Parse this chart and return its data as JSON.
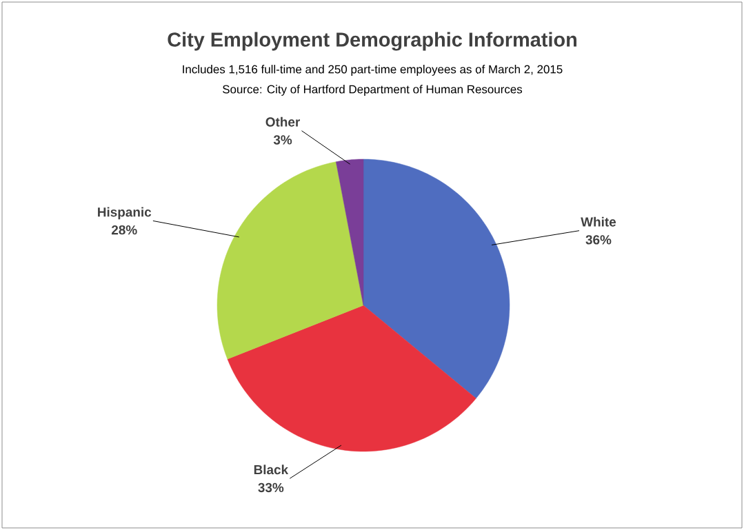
{
  "chart_data": {
    "type": "pie",
    "title": "City Employment Demographic Information",
    "subtitle": "Includes 1,516 full-time and 250 part-time employees as of March 2, 2015",
    "annotations": [
      "Source:  City of Hartford Department of Human Resources"
    ],
    "categories": [
      "White",
      "Black",
      "Hispanic",
      "Other"
    ],
    "values": [
      36,
      33,
      28,
      3
    ],
    "value_labels": [
      "36%",
      "33%",
      "28%",
      "3%"
    ],
    "colors": [
      "#4f6dc0",
      "#e8333f",
      "#b4d84c",
      "#7a3e98"
    ]
  }
}
